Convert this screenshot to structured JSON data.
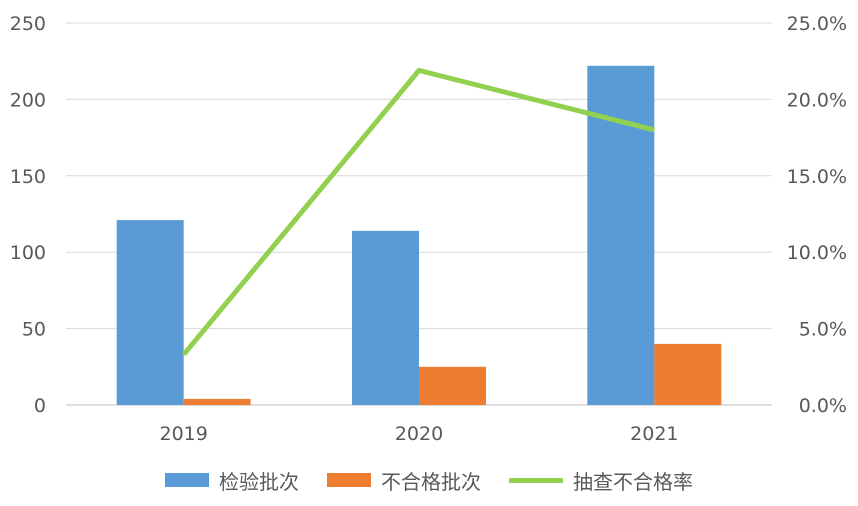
{
  "chart_data": {
    "type": "bar",
    "categories": [
      "2019",
      "2020",
      "2021"
    ],
    "series": [
      {
        "name": "检验批次",
        "kind": "bar",
        "axis": "left",
        "color": "#5B9BD5",
        "values": [
          121,
          114,
          222
        ]
      },
      {
        "name": "不合格批次",
        "kind": "bar",
        "axis": "left",
        "color": "#ED7D31",
        "values": [
          4,
          25,
          40
        ]
      },
      {
        "name": "抽查不合格率",
        "kind": "line",
        "axis": "right",
        "color": "#92D050",
        "values": [
          3.3,
          21.9,
          18.0
        ]
      }
    ],
    "y_left": {
      "ylim": [
        0,
        250
      ],
      "ticks": [
        "0",
        "50",
        "100",
        "150",
        "200",
        "250"
      ]
    },
    "y_right": {
      "ylim": [
        0,
        25
      ],
      "ticks": [
        "0.0%",
        "5.0%",
        "10.0%",
        "15.0%",
        "20.0%",
        "25.0%"
      ]
    },
    "grid": true,
    "legend": "bottom"
  }
}
